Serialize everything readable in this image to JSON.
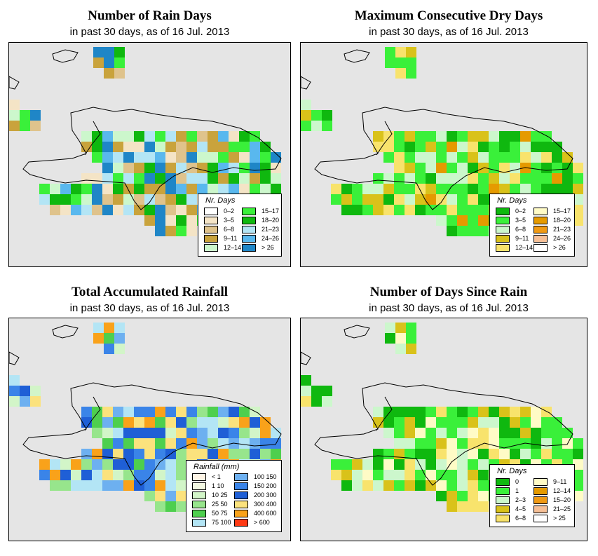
{
  "colors": {
    "background": "#e5e5e5",
    "coastline": "#000000",
    "rain_days": [
      "#ffffff",
      "#f4e4c6",
      "#dfc38c",
      "#c9a33c",
      "#ccf7cc",
      "#3af03a",
      "#0fb80f",
      "#b3e5f5",
      "#59b8ee",
      "#1f86c7"
    ],
    "dry_days": [
      "#0fb80f",
      "#3af03a",
      "#ccf7cc",
      "#d9c21a",
      "#f8e36c",
      "#fffbc6",
      "#e59a00",
      "#f09a14",
      "#f6c097",
      "#ffffff"
    ],
    "rainfall": [
      "#fff5e6",
      "#f3f8e2",
      "#d2f5c8",
      "#97e58c",
      "#4ecf4e",
      "#b3e5f5",
      "#6db0f0",
      "#3a84e8",
      "#1f5fd6",
      "#fbe27d",
      "#f9a21a",
      "#ff3a14"
    ],
    "since_rain": [
      "#0fb80f",
      "#3af03a",
      "#ccf7cc",
      "#d9c21a",
      "#f8e36c",
      "#fffbc6",
      "#e59a00",
      "#f09a14",
      "#f6c097",
      "#ffffff"
    ]
  },
  "panels": [
    {
      "title": "Number of Rain Days",
      "subtitle": "in past 30 days, as of  16 Jul. 2013",
      "legend": {
        "title": "Nr. Days",
        "items": [
          {
            "label": "0–2",
            "color": "#ffffff"
          },
          {
            "label": "3–5",
            "color": "#f4e4c6"
          },
          {
            "label": "6–8",
            "color": "#dfc38c"
          },
          {
            "label": "9–11",
            "color": "#c9a33c"
          },
          {
            "label": "12–14",
            "color": "#ccf7cc"
          },
          {
            "label": "15–17",
            "color": "#3af03a"
          },
          {
            "label": "18–20",
            "color": "#0fb80f"
          },
          {
            "label": "21–23",
            "color": "#b3e5f5"
          },
          {
            "label": "24–26",
            "color": "#59b8ee"
          },
          {
            "label": "> 26",
            "color": "#1f86c7"
          }
        ]
      }
    },
    {
      "title": "Maximum Consecutive Dry Days",
      "subtitle": "in past 30 days, as of  16 Jul. 2013",
      "legend": {
        "title": "Nr. Days",
        "items": [
          {
            "label": "0–2",
            "color": "#0fb80f"
          },
          {
            "label": "3–5",
            "color": "#3af03a"
          },
          {
            "label": "6–8",
            "color": "#ccf7cc"
          },
          {
            "label": "9–11",
            "color": "#d9c21a"
          },
          {
            "label": "12–14",
            "color": "#f8e36c"
          },
          {
            "label": "15–17",
            "color": "#fffbc6"
          },
          {
            "label": "18–20",
            "color": "#e59a00"
          },
          {
            "label": "21–23",
            "color": "#f09a14"
          },
          {
            "label": "24–26",
            "color": "#f6c097"
          },
          {
            "label": "> 26",
            "color": "#ffffff"
          }
        ]
      }
    },
    {
      "title": "Total Accumulated Rainfall",
      "subtitle": "in past 30 days, as of  16 Jul. 2013",
      "legend": {
        "title": "Rainfall (mm)",
        "items": [
          {
            "label": "< 1",
            "color": "#fff5e6"
          },
          {
            "label": "1  10",
            "color": "#f3f8e2"
          },
          {
            "label": "10  25",
            "color": "#d2f5c8"
          },
          {
            "label": "25  50",
            "color": "#97e58c"
          },
          {
            "label": "50  75",
            "color": "#4ecf4e"
          },
          {
            "label": "75  100",
            "color": "#b3e5f5"
          },
          {
            "label": "100  150",
            "color": "#6db0f0"
          },
          {
            "label": "150  200",
            "color": "#3a84e8"
          },
          {
            "label": "200  300",
            "color": "#1f5fd6"
          },
          {
            "label": "300  400",
            "color": "#fbe27d"
          },
          {
            "label": "400  600",
            "color": "#f9a21a"
          },
          {
            "label": "> 600",
            "color": "#ff3a14"
          }
        ]
      }
    },
    {
      "title": "Number of Days Since Rain",
      "subtitle": "in past 30 days, as of  16 Jul. 2013",
      "legend": {
        "title": "Nr. Days",
        "items": [
          {
            "label": "0",
            "color": "#0fb80f"
          },
          {
            "label": "1",
            "color": "#3af03a"
          },
          {
            "label": "2–3",
            "color": "#ccf7cc"
          },
          {
            "label": "4–5",
            "color": "#d9c21a"
          },
          {
            "label": "6–8",
            "color": "#f8e36c"
          },
          {
            "label": "9–11",
            "color": "#fffbc6"
          },
          {
            "label": "12–14",
            "color": "#e59a00"
          },
          {
            "label": "15–20",
            "color": "#f09a14"
          },
          {
            "label": "21–25",
            "color": "#f6c097"
          },
          {
            "label": "> 25",
            "color": "#ffffff"
          }
        ]
      }
    }
  ]
}
